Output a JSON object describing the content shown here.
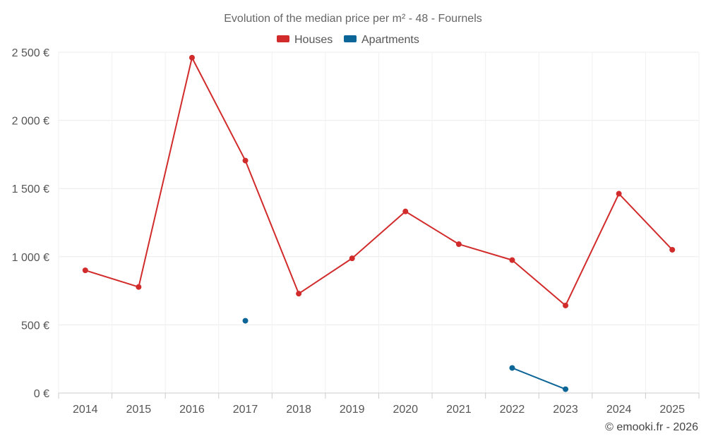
{
  "chart_data": {
    "type": "line",
    "title": "Evolution of the median price per m² - 48 - Fournels",
    "categories": [
      "2014",
      "2015",
      "2016",
      "2017",
      "2018",
      "2019",
      "2020",
      "2021",
      "2022",
      "2023",
      "2024",
      "2025"
    ],
    "ylim": [
      0,
      2500
    ],
    "yticks": [
      0,
      500,
      1000,
      1500,
      2000,
      2500
    ],
    "ytick_labels": [
      "0 €",
      "500 €",
      "1 000 €",
      "1 500 €",
      "2 000 €",
      "2 500 €"
    ],
    "grid": true,
    "legend_position": "top-center",
    "series": [
      {
        "name": "Houses",
        "color": "#d22b2b",
        "values": [
          900,
          778,
          2460,
          1705,
          729,
          988,
          1332,
          1092,
          975,
          642,
          1462,
          1051
        ]
      },
      {
        "name": "Apartments",
        "color": "#0b6597",
        "values": [
          null,
          null,
          null,
          530,
          null,
          null,
          null,
          null,
          184,
          28,
          null,
          null
        ]
      }
    ],
    "credit": "© emooki.fr - 2026"
  }
}
